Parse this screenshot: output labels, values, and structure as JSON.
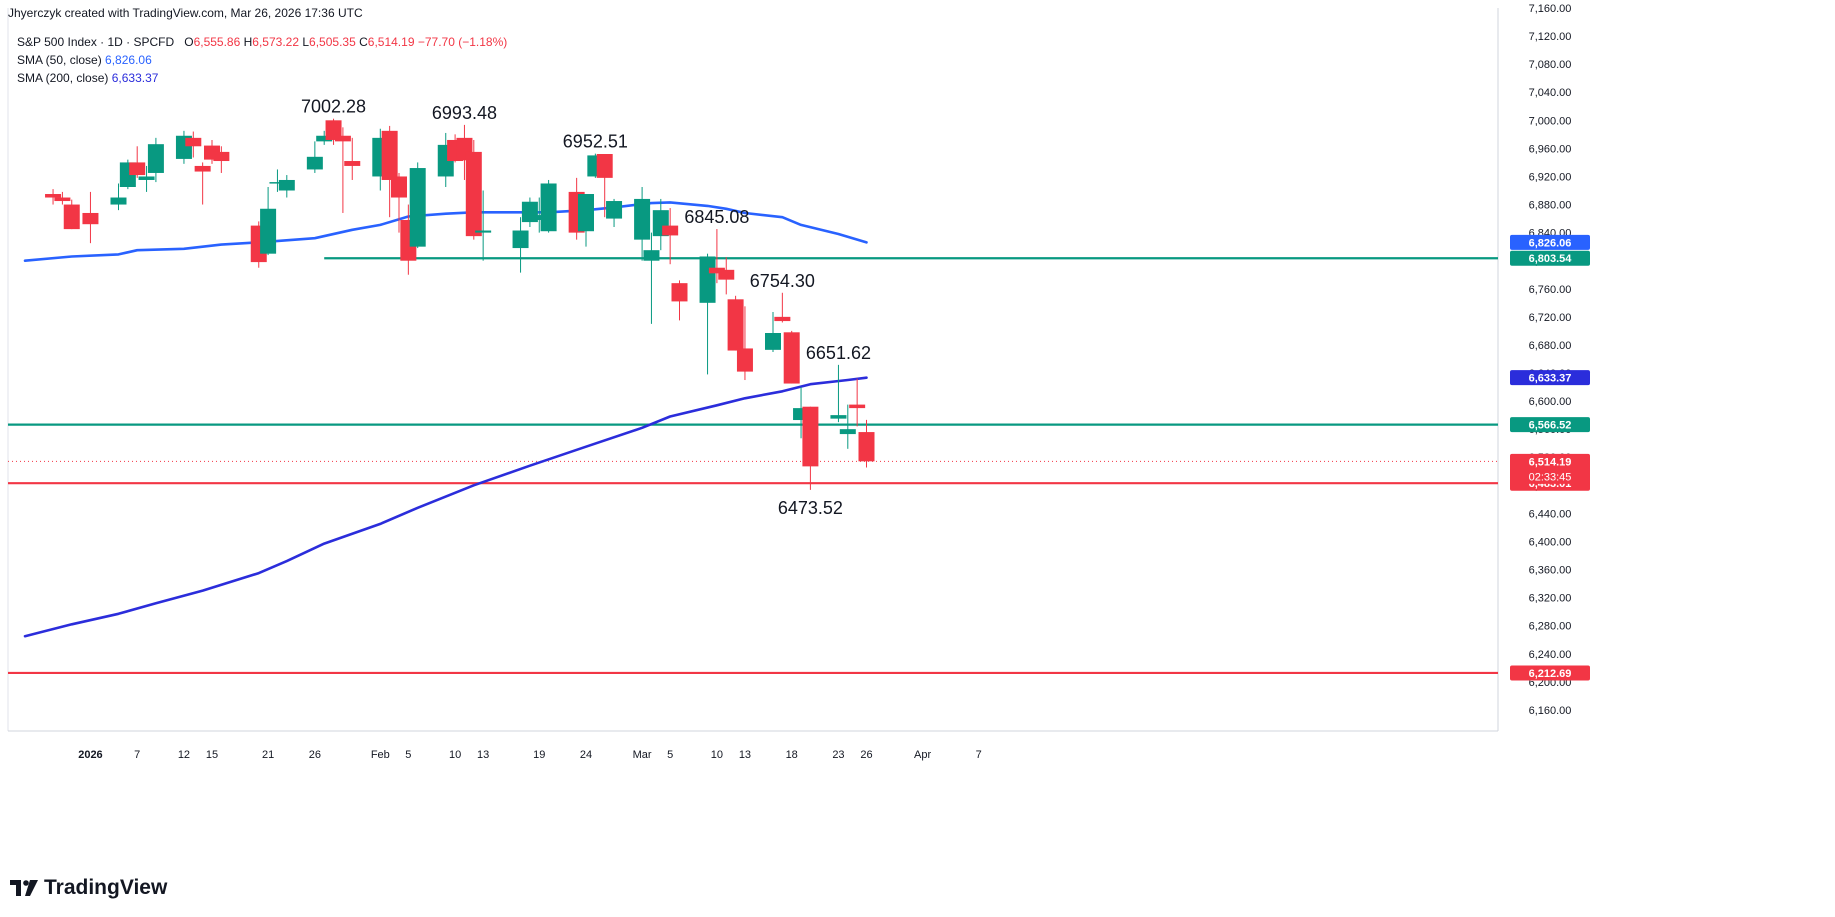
{
  "header": {
    "credit": "Jhyerczyk created with TradingView.com, Mar 26, 2026 17:36 UTC"
  },
  "legend": {
    "symbol": "S&P 500 Index · 1D · SPCFD",
    "o_label": "O",
    "o_value": "6,555.86",
    "h_label": "H",
    "h_value": "6,573.22",
    "l_label": "L",
    "l_value": "6,505.35",
    "c_label": "C",
    "c_value": "6,514.19",
    "change": "−77.70 (−1.18%)",
    "sma50_label": "SMA (50, close)",
    "sma50_value": "6,826.06",
    "sma200_label": "SMA (200, close)",
    "sma200_value": "6,633.37"
  },
  "brand": {
    "name": "TradingView"
  },
  "colors": {
    "up": "#089981",
    "down": "#f23645",
    "sma50": "#2962ff",
    "sma200": "#2b2ddb",
    "grid": "#f0f3fa",
    "axis_text": "#131722"
  },
  "chart_data": {
    "type": "candlestick",
    "ylim": [
      6130,
      7160
    ],
    "y_ticks": [
      6160,
      6200,
      6240,
      6280,
      6320,
      6360,
      6400,
      6440,
      6480,
      6520,
      6560,
      6600,
      6640,
      6680,
      6720,
      6760,
      6800,
      6840,
      6880,
      6920,
      6960,
      7000,
      7040,
      7080,
      7120,
      7160
    ],
    "y_tick_labels": [
      "6,160.00",
      "6,200.00",
      "6,240.00",
      "6,280.00",
      "6,320.00",
      "6,360.00",
      "6,400.00",
      "6,440.00",
      "6,480.00",
      "6,520.00",
      "6,560.00",
      "6,600.00",
      "6,640.00",
      "6,680.00",
      "6,720.00",
      "6,760.00",
      "6,800.00",
      "6,840.00",
      "6,880.00",
      "6,920.00",
      "6,960.00",
      "7,000.00",
      "7,040.00",
      "7,080.00",
      "7,120.00",
      "7,160.00"
    ],
    "x_ticks": [
      {
        "label": "2026",
        "date": "2026-01-02"
      },
      {
        "label": "7",
        "date": "2026-01-07"
      },
      {
        "label": "12",
        "date": "2026-01-12"
      },
      {
        "label": "15",
        "date": "2026-01-15"
      },
      {
        "label": "21",
        "date": "2026-01-21"
      },
      {
        "label": "26",
        "date": "2026-01-26"
      },
      {
        "label": "Feb",
        "date": "2026-02-02"
      },
      {
        "label": "5",
        "date": "2026-02-05"
      },
      {
        "label": "10",
        "date": "2026-02-10"
      },
      {
        "label": "13",
        "date": "2026-02-13"
      },
      {
        "label": "19",
        "date": "2026-02-19"
      },
      {
        "label": "24",
        "date": "2026-02-24"
      },
      {
        "label": "Mar",
        "date": "2026-03-02"
      },
      {
        "label": "5",
        "date": "2026-03-05"
      },
      {
        "label": "10",
        "date": "2026-03-10"
      },
      {
        "label": "13",
        "date": "2026-03-13"
      },
      {
        "label": "18",
        "date": "2026-03-18"
      },
      {
        "label": "23",
        "date": "2026-03-23"
      },
      {
        "label": "26",
        "date": "2026-03-26"
      },
      {
        "label": "Apr",
        "date": "2026-04-01"
      },
      {
        "label": "7",
        "date": "2026-04-07"
      }
    ],
    "candles": [
      {
        "d": "2025-12-29",
        "o": 6895,
        "h": 6902,
        "l": 6880,
        "c": 6890
      },
      {
        "d": "2025-12-30",
        "o": 6890,
        "h": 6898,
        "l": 6880,
        "c": 6885
      },
      {
        "d": "2025-12-31",
        "o": 6880,
        "h": 6887,
        "l": 6845,
        "c": 6845
      },
      {
        "d": "2026-01-02",
        "o": 6868,
        "h": 6898,
        "l": 6825,
        "c": 6852
      },
      {
        "d": "2026-01-05",
        "o": 6880,
        "h": 6910,
        "l": 6872,
        "c": 6890
      },
      {
        "d": "2026-01-06",
        "o": 6905,
        "h": 6944,
        "l": 6902,
        "c": 6940
      },
      {
        "d": "2026-01-07",
        "o": 6940,
        "h": 6963,
        "l": 6918,
        "c": 6922
      },
      {
        "d": "2026-01-08",
        "o": 6915,
        "h": 6935,
        "l": 6898,
        "c": 6920
      },
      {
        "d": "2026-01-09",
        "o": 6925,
        "h": 6975,
        "l": 6912,
        "c": 6966
      },
      {
        "d": "2026-01-12",
        "o": 6945,
        "h": 6985,
        "l": 6938,
        "c": 6978
      },
      {
        "d": "2026-01-13",
        "o": 6975,
        "h": 6984,
        "l": 6947,
        "c": 6963
      },
      {
        "d": "2026-01-14",
        "o": 6935,
        "h": 6940,
        "l": 6880,
        "c": 6927
      },
      {
        "d": "2026-01-15",
        "o": 6964,
        "h": 6972,
        "l": 6938,
        "c": 6944
      },
      {
        "d": "2026-01-16",
        "o": 6955,
        "h": 6963,
        "l": 6925,
        "c": 6942
      },
      {
        "d": "2026-01-20",
        "o": 6850,
        "h": 6856,
        "l": 6790,
        "c": 6798
      },
      {
        "d": "2026-01-21",
        "o": 6810,
        "h": 6905,
        "l": 6808,
        "c": 6874
      },
      {
        "d": "2026-01-22",
        "o": 6912,
        "h": 6930,
        "l": 6898,
        "c": 6912
      },
      {
        "d": "2026-01-23",
        "o": 6900,
        "h": 6922,
        "l": 6890,
        "c": 6915
      },
      {
        "d": "2026-01-26",
        "o": 6930,
        "h": 6970,
        "l": 6925,
        "c": 6948
      },
      {
        "d": "2026-01-27",
        "o": 6970,
        "h": 6985,
        "l": 6965,
        "c": 6978
      },
      {
        "d": "2026-01-28",
        "o": 7000,
        "h": 7002.28,
        "l": 6965,
        "c": 6972
      },
      {
        "d": "2026-01-29",
        "o": 6978,
        "h": 6990,
        "l": 6868,
        "c": 6970
      },
      {
        "d": "2026-01-30",
        "o": 6942,
        "h": 6975,
        "l": 6915,
        "c": 6935
      },
      {
        "d": "2026-02-02",
        "o": 6920,
        "h": 6988,
        "l": 6900,
        "c": 6975
      },
      {
        "d": "2026-02-03",
        "o": 6985,
        "h": 6992,
        "l": 6862,
        "c": 6915
      },
      {
        "d": "2026-02-04",
        "o": 6920,
        "h": 6925,
        "l": 6840,
        "c": 6890
      },
      {
        "d": "2026-02-05",
        "o": 6858,
        "h": 6880,
        "l": 6780,
        "c": 6800
      },
      {
        "d": "2026-02-06",
        "o": 6820,
        "h": 6940,
        "l": 6818,
        "c": 6932
      },
      {
        "d": "2026-02-09",
        "o": 6920,
        "h": 6982,
        "l": 6905,
        "c": 6965
      },
      {
        "d": "2026-02-10",
        "o": 6972,
        "h": 6980,
        "l": 6940,
        "c": 6942
      },
      {
        "d": "2026-02-11",
        "o": 6975,
        "h": 6993.48,
        "l": 6915,
        "c": 6943
      },
      {
        "d": "2026-02-12",
        "o": 6955,
        "h": 6972,
        "l": 6830,
        "c": 6835
      },
      {
        "d": "2026-02-13",
        "o": 6840,
        "h": 6900,
        "l": 6800,
        "c": 6843
      },
      {
        "d": "2026-02-17",
        "o": 6818,
        "h": 6862,
        "l": 6783,
        "c": 6843
      },
      {
        "d": "2026-02-18",
        "o": 6855,
        "h": 6890,
        "l": 6848,
        "c": 6884
      },
      {
        "d": "2026-02-19",
        "o": 6858,
        "h": 6890,
        "l": 6840,
        "c": 6865
      },
      {
        "d": "2026-02-20",
        "o": 6842,
        "h": 6915,
        "l": 6840,
        "c": 6910
      },
      {
        "d": "2026-02-23",
        "o": 6898,
        "h": 6918,
        "l": 6830,
        "c": 6840
      },
      {
        "d": "2026-02-24",
        "o": 6842,
        "h": 6895,
        "l": 6820,
        "c": 6895
      },
      {
        "d": "2026-02-25",
        "o": 6920,
        "h": 6952.51,
        "l": 6918,
        "c": 6950
      },
      {
        "d": "2026-02-26",
        "o": 6952,
        "h": 6952,
        "l": 6862,
        "c": 6918
      },
      {
        "d": "2026-02-27",
        "o": 6860,
        "h": 6888,
        "l": 6848,
        "c": 6885
      },
      {
        "d": "2026-03-02",
        "o": 6830,
        "h": 6905,
        "l": 6800,
        "c": 6888
      },
      {
        "d": "2026-03-03",
        "o": 6800,
        "h": 6840,
        "l": 6710,
        "c": 6815
      },
      {
        "d": "2026-03-04",
        "o": 6835,
        "h": 6888,
        "l": 6815,
        "c": 6872
      },
      {
        "d": "2026-03-05",
        "o": 6850,
        "h": 6875,
        "l": 6795,
        "c": 6836
      },
      {
        "d": "2026-03-06",
        "o": 6768,
        "h": 6772,
        "l": 6715,
        "c": 6742
      },
      {
        "d": "2026-03-09",
        "o": 6740,
        "h": 6810,
        "l": 6638,
        "c": 6806
      },
      {
        "d": "2026-03-10",
        "o": 6790,
        "h": 6845.08,
        "l": 6768,
        "c": 6782
      },
      {
        "d": "2026-03-11",
        "o": 6787,
        "h": 6805,
        "l": 6752,
        "c": 6773
      },
      {
        "d": "2026-03-12",
        "o": 6745,
        "h": 6750,
        "l": 6672,
        "c": 6672
      },
      {
        "d": "2026-03-13",
        "o": 6675,
        "h": 6735,
        "l": 6630,
        "c": 6642
      },
      {
        "d": "2026-03-16",
        "o": 6673,
        "h": 6727,
        "l": 6670,
        "c": 6697
      },
      {
        "d": "2026-03-17",
        "o": 6720,
        "h": 6754.3,
        "l": 6712,
        "c": 6714
      },
      {
        "d": "2026-03-18",
        "o": 6698,
        "h": 6700,
        "l": 6625,
        "c": 6625
      },
      {
        "d": "2026-03-19",
        "o": 6573,
        "h": 6620,
        "l": 6547,
        "c": 6590
      },
      {
        "d": "2026-03-20",
        "o": 6592,
        "h": 6592,
        "l": 6473.52,
        "c": 6507
      },
      {
        "d": "2026-03-23",
        "o": 6575,
        "h": 6651.62,
        "l": 6570,
        "c": 6580
      },
      {
        "d": "2026-03-24",
        "o": 6553,
        "h": 6595,
        "l": 6532,
        "c": 6560
      },
      {
        "d": "2026-03-25",
        "o": 6595,
        "h": 6632,
        "l": 6564,
        "c": 6590
      },
      {
        "d": "2026-03-26",
        "o": 6555.86,
        "h": 6573.22,
        "l": 6505.35,
        "c": 6514.19
      }
    ],
    "sma50": [
      {
        "d": "2025-12-26",
        "v": 6800
      },
      {
        "d": "2025-12-31",
        "v": 6806
      },
      {
        "d": "2026-01-05",
        "v": 6809
      },
      {
        "d": "2026-01-07",
        "v": 6815
      },
      {
        "d": "2026-01-12",
        "v": 6817
      },
      {
        "d": "2026-01-16",
        "v": 6823
      },
      {
        "d": "2026-01-21",
        "v": 6827
      },
      {
        "d": "2026-01-26",
        "v": 6832
      },
      {
        "d": "2026-01-30",
        "v": 6844
      },
      {
        "d": "2026-02-02",
        "v": 6851
      },
      {
        "d": "2026-02-05",
        "v": 6863
      },
      {
        "d": "2026-02-09",
        "v": 6867
      },
      {
        "d": "2026-02-12",
        "v": 6869
      },
      {
        "d": "2026-02-17",
        "v": 6869
      },
      {
        "d": "2026-02-20",
        "v": 6869
      },
      {
        "d": "2026-02-24",
        "v": 6872
      },
      {
        "d": "2026-02-27",
        "v": 6876
      },
      {
        "d": "2026-03-03",
        "v": 6882
      },
      {
        "d": "2026-03-05",
        "v": 6883
      },
      {
        "d": "2026-03-09",
        "v": 6878
      },
      {
        "d": "2026-03-11",
        "v": 6874
      },
      {
        "d": "2026-03-13",
        "v": 6868
      },
      {
        "d": "2026-03-17",
        "v": 6862
      },
      {
        "d": "2026-03-19",
        "v": 6851
      },
      {
        "d": "2026-03-23",
        "v": 6838
      },
      {
        "d": "2026-03-26",
        "v": 6826.06
      }
    ],
    "sma200": [
      {
        "d": "2025-12-26",
        "v": 6265
      },
      {
        "d": "2025-12-31",
        "v": 6282
      },
      {
        "d": "2026-01-05",
        "v": 6297
      },
      {
        "d": "2026-01-09",
        "v": 6312
      },
      {
        "d": "2026-01-14",
        "v": 6330
      },
      {
        "d": "2026-01-20",
        "v": 6355
      },
      {
        "d": "2026-01-23",
        "v": 6372
      },
      {
        "d": "2026-01-27",
        "v": 6397
      },
      {
        "d": "2026-02-02",
        "v": 6425
      },
      {
        "d": "2026-02-06",
        "v": 6448
      },
      {
        "d": "2026-02-12",
        "v": 6480
      },
      {
        "d": "2026-02-18",
        "v": 6508
      },
      {
        "d": "2026-02-24",
        "v": 6535
      },
      {
        "d": "2026-03-02",
        "v": 6562
      },
      {
        "d": "2026-03-05",
        "v": 6578
      },
      {
        "d": "2026-03-10",
        "v": 6594
      },
      {
        "d": "2026-03-13",
        "v": 6604
      },
      {
        "d": "2026-03-17",
        "v": 6614
      },
      {
        "d": "2026-03-20",
        "v": 6624
      },
      {
        "d": "2026-03-24",
        "v": 6630
      },
      {
        "d": "2026-03-26",
        "v": 6633.37
      }
    ],
    "hlines": [
      {
        "value": 6803.54,
        "color": "#089981",
        "from": "2026-01-27",
        "label": "6,803.54"
      },
      {
        "value": 6566.52,
        "color": "#089981",
        "from": null,
        "label": "6,566.52"
      },
      {
        "value": 6483.01,
        "color": "#f23645",
        "from": null,
        "label": "6,483.01"
      },
      {
        "value": 6212.69,
        "color": "#f23645",
        "from": null,
        "label": "6,212.69"
      }
    ],
    "price_tags": [
      {
        "value": 6826.06,
        "color": "#2962ff",
        "label": "6,826.06"
      },
      {
        "value": 6633.37,
        "color": "#2b2ddb",
        "label": "6,633.37"
      },
      {
        "value": 6514.19,
        "color": "#f23645",
        "label": "6,514.19",
        "sub": "02:33:45"
      }
    ],
    "last_price": 6514.19,
    "annotations": [
      {
        "text": "7002.28",
        "date": "2026-01-28",
        "value": 7002.28,
        "pos": "above"
      },
      {
        "text": "6993.48",
        "date": "2026-02-11",
        "value": 6993.48,
        "pos": "above"
      },
      {
        "text": "6952.51",
        "date": "2026-02-25",
        "value": 6952.51,
        "pos": "above"
      },
      {
        "text": "6845.08",
        "date": "2026-03-10",
        "value": 6845.08,
        "pos": "above"
      },
      {
        "text": "6754.30",
        "date": "2026-03-17",
        "value": 6754.3,
        "pos": "above"
      },
      {
        "text": "6651.62",
        "date": "2026-03-23",
        "value": 6651.62,
        "pos": "above"
      },
      {
        "text": "6473.52",
        "date": "2026-03-20",
        "value": 6473.52,
        "pos": "below"
      }
    ]
  }
}
